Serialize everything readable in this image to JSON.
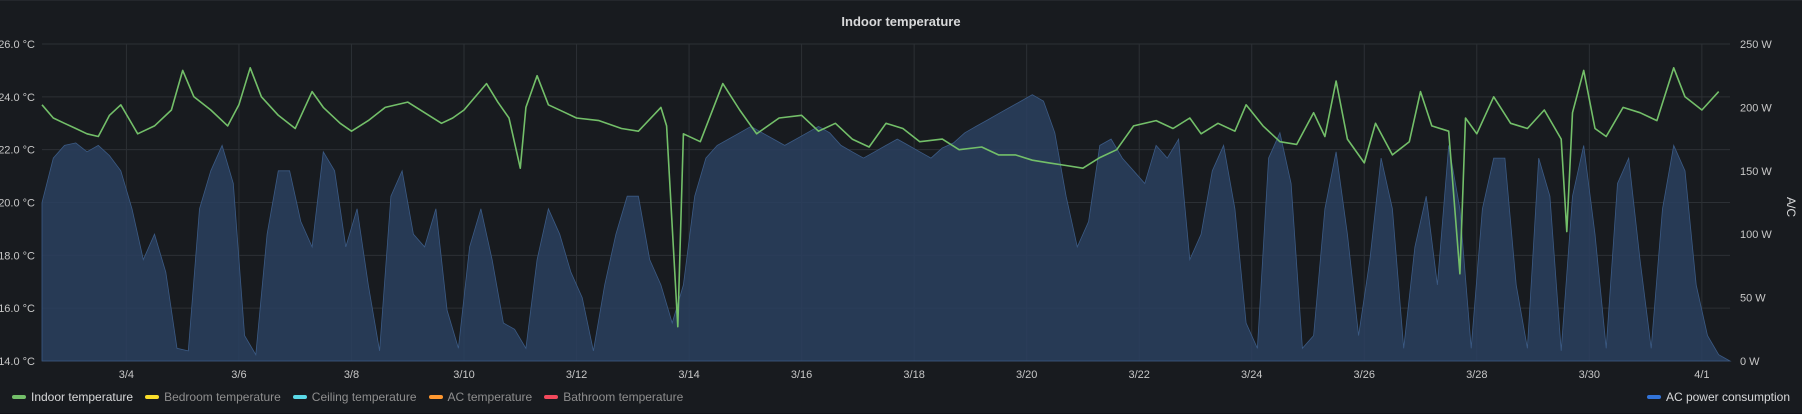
{
  "panel": {
    "title": "Indoor temperature"
  },
  "legend": {
    "items": [
      {
        "label": "Indoor temperature",
        "color": "#73bf69",
        "active": true
      },
      {
        "label": "Bedroom temperature",
        "color": "#fade2a",
        "active": false
      },
      {
        "label": "Ceiling temperature",
        "color": "#5ad8e6",
        "active": false
      },
      {
        "label": "AC temperature",
        "color": "#ff9830",
        "active": false
      },
      {
        "label": "Bathroom temperature",
        "color": "#f2495c",
        "active": false
      }
    ],
    "right": {
      "label": "AC power consumption",
      "color": "#3274d9"
    }
  },
  "chart_data": {
    "type": "line",
    "title": "Indoor temperature",
    "y_left": {
      "ticks": [
        "26.0 °C",
        "24.0 °C",
        "22.0 °C",
        "20.0 °C",
        "18.0 °C",
        "16.0 °C",
        "14.0 °C"
      ],
      "range": [
        14,
        26
      ],
      "unit": "°C"
    },
    "y_right": {
      "ticks": [
        "250 W",
        "200 W",
        "150 W",
        "100 W",
        "50 W",
        "0 W"
      ],
      "range": [
        0,
        250
      ],
      "label": "A/C"
    },
    "x_ticks": [
      "3/4",
      "3/6",
      "3/8",
      "3/10",
      "3/12",
      "3/14",
      "3/16",
      "3/18",
      "3/20",
      "3/22",
      "3/24",
      "3/26",
      "3/28",
      "3/30",
      "4/1"
    ],
    "x_range_days": [
      -1.5,
      28.5
    ],
    "grid": true,
    "series": [
      {
        "name": "Indoor temperature",
        "axis": "left",
        "color": "#73bf69",
        "points": [
          [
            -1.5,
            23.7
          ],
          [
            -1.3,
            23.2
          ],
          [
            -1.1,
            23.0
          ],
          [
            -0.9,
            22.8
          ],
          [
            -0.7,
            22.6
          ],
          [
            -0.5,
            22.5
          ],
          [
            -0.3,
            23.3
          ],
          [
            -0.1,
            23.7
          ],
          [
            0.2,
            22.6
          ],
          [
            0.5,
            22.9
          ],
          [
            0.8,
            23.5
          ],
          [
            1.0,
            25.0
          ],
          [
            1.2,
            24.0
          ],
          [
            1.5,
            23.5
          ],
          [
            1.8,
            22.9
          ],
          [
            2.0,
            23.7
          ],
          [
            2.2,
            25.1
          ],
          [
            2.4,
            24.0
          ],
          [
            2.7,
            23.3
          ],
          [
            3.0,
            22.8
          ],
          [
            3.3,
            24.2
          ],
          [
            3.5,
            23.6
          ],
          [
            3.8,
            23.0
          ],
          [
            4.0,
            22.7
          ],
          [
            4.3,
            23.1
          ],
          [
            4.6,
            23.6
          ],
          [
            5.0,
            23.8
          ],
          [
            5.3,
            23.4
          ],
          [
            5.6,
            23.0
          ],
          [
            5.8,
            23.2
          ],
          [
            6.0,
            23.5
          ],
          [
            6.4,
            24.5
          ],
          [
            6.6,
            23.8
          ],
          [
            6.8,
            23.2
          ],
          [
            7.0,
            21.3
          ],
          [
            7.1,
            23.6
          ],
          [
            7.3,
            24.8
          ],
          [
            7.5,
            23.7
          ],
          [
            7.8,
            23.4
          ],
          [
            8.0,
            23.2
          ],
          [
            8.4,
            23.1
          ],
          [
            8.8,
            22.8
          ],
          [
            9.1,
            22.7
          ],
          [
            9.5,
            23.6
          ],
          [
            9.6,
            22.9
          ],
          [
            9.8,
            15.3
          ],
          [
            9.9,
            22.6
          ],
          [
            10.2,
            22.3
          ],
          [
            10.6,
            24.5
          ],
          [
            10.9,
            23.5
          ],
          [
            11.2,
            22.6
          ],
          [
            11.6,
            23.2
          ],
          [
            12.0,
            23.3
          ],
          [
            12.3,
            22.7
          ],
          [
            12.6,
            23.0
          ],
          [
            12.9,
            22.4
          ],
          [
            13.2,
            22.1
          ],
          [
            13.5,
            23.0
          ],
          [
            13.8,
            22.8
          ],
          [
            14.1,
            22.3
          ],
          [
            14.5,
            22.4
          ],
          [
            14.8,
            22.0
          ],
          [
            15.2,
            22.1
          ],
          [
            15.5,
            21.8
          ],
          [
            15.8,
            21.8
          ],
          [
            16.1,
            21.6
          ],
          [
            16.4,
            21.5
          ],
          [
            16.7,
            21.4
          ],
          [
            17.0,
            21.3
          ],
          [
            17.3,
            21.7
          ],
          [
            17.6,
            22.0
          ],
          [
            17.9,
            22.9
          ],
          [
            18.3,
            23.1
          ],
          [
            18.6,
            22.8
          ],
          [
            18.9,
            23.2
          ],
          [
            19.1,
            22.6
          ],
          [
            19.4,
            23.0
          ],
          [
            19.7,
            22.7
          ],
          [
            19.9,
            23.7
          ],
          [
            20.2,
            22.9
          ],
          [
            20.5,
            22.3
          ],
          [
            20.8,
            22.2
          ],
          [
            21.1,
            23.4
          ],
          [
            21.3,
            22.5
          ],
          [
            21.5,
            24.6
          ],
          [
            21.7,
            22.4
          ],
          [
            22.0,
            21.5
          ],
          [
            22.2,
            23.0
          ],
          [
            22.5,
            21.8
          ],
          [
            22.8,
            22.3
          ],
          [
            23.0,
            24.2
          ],
          [
            23.2,
            22.9
          ],
          [
            23.5,
            22.7
          ],
          [
            23.7,
            17.3
          ],
          [
            23.8,
            23.2
          ],
          [
            24.0,
            22.6
          ],
          [
            24.3,
            24.0
          ],
          [
            24.6,
            23.0
          ],
          [
            24.9,
            22.8
          ],
          [
            25.2,
            23.5
          ],
          [
            25.5,
            22.4
          ],
          [
            25.6,
            18.9
          ],
          [
            25.7,
            23.4
          ],
          [
            25.9,
            25.0
          ],
          [
            26.1,
            22.8
          ],
          [
            26.3,
            22.5
          ],
          [
            26.6,
            23.6
          ],
          [
            26.9,
            23.4
          ],
          [
            27.2,
            23.1
          ],
          [
            27.5,
            25.1
          ],
          [
            27.7,
            24.0
          ],
          [
            28.0,
            23.5
          ],
          [
            28.3,
            24.2
          ]
        ]
      }
    ],
    "area_series": {
      "name": "AC power consumption",
      "axis": "right",
      "color": "#3274d9",
      "points": [
        [
          -1.5,
          125
        ],
        [
          -1.3,
          160
        ],
        [
          -1.1,
          170
        ],
        [
          -0.9,
          172
        ],
        [
          -0.7,
          165
        ],
        [
          -0.5,
          170
        ],
        [
          -0.3,
          162
        ],
        [
          -0.1,
          150
        ],
        [
          0.1,
          120
        ],
        [
          0.3,
          80
        ],
        [
          0.5,
          100
        ],
        [
          0.7,
          70
        ],
        [
          0.9,
          10
        ],
        [
          1.1,
          8
        ],
        [
          1.3,
          120
        ],
        [
          1.5,
          150
        ],
        [
          1.7,
          170
        ],
        [
          1.9,
          140
        ],
        [
          2.1,
          20
        ],
        [
          2.3,
          5
        ],
        [
          2.5,
          100
        ],
        [
          2.7,
          150
        ],
        [
          2.9,
          150
        ],
        [
          3.1,
          110
        ],
        [
          3.3,
          90
        ],
        [
          3.5,
          165
        ],
        [
          3.7,
          150
        ],
        [
          3.9,
          90
        ],
        [
          4.1,
          120
        ],
        [
          4.3,
          60
        ],
        [
          4.5,
          8
        ],
        [
          4.7,
          130
        ],
        [
          4.9,
          150
        ],
        [
          5.1,
          100
        ],
        [
          5.3,
          90
        ],
        [
          5.5,
          120
        ],
        [
          5.7,
          40
        ],
        [
          5.9,
          10
        ],
        [
          6.1,
          90
        ],
        [
          6.3,
          120
        ],
        [
          6.5,
          80
        ],
        [
          6.7,
          30
        ],
        [
          6.9,
          25
        ],
        [
          7.1,
          10
        ],
        [
          7.3,
          80
        ],
        [
          7.5,
          120
        ],
        [
          7.7,
          100
        ],
        [
          7.9,
          70
        ],
        [
          8.1,
          50
        ],
        [
          8.3,
          8
        ],
        [
          8.5,
          60
        ],
        [
          8.7,
          100
        ],
        [
          8.9,
          130
        ],
        [
          9.1,
          130
        ],
        [
          9.3,
          80
        ],
        [
          9.5,
          60
        ],
        [
          9.7,
          30
        ],
        [
          9.9,
          60
        ],
        [
          10.1,
          130
        ],
        [
          10.3,
          160
        ],
        [
          10.5,
          170
        ],
        [
          10.7,
          175
        ],
        [
          10.9,
          180
        ],
        [
          11.1,
          185
        ],
        [
          11.3,
          180
        ],
        [
          11.5,
          175
        ],
        [
          11.7,
          170
        ],
        [
          11.9,
          175
        ],
        [
          12.1,
          180
        ],
        [
          12.3,
          185
        ],
        [
          12.5,
          180
        ],
        [
          12.7,
          170
        ],
        [
          12.9,
          165
        ],
        [
          13.1,
          160
        ],
        [
          13.3,
          165
        ],
        [
          13.5,
          170
        ],
        [
          13.7,
          175
        ],
        [
          13.9,
          170
        ],
        [
          14.1,
          165
        ],
        [
          14.3,
          160
        ],
        [
          14.5,
          168
        ],
        [
          14.7,
          172
        ],
        [
          14.9,
          180
        ],
        [
          15.1,
          185
        ],
        [
          15.3,
          190
        ],
        [
          15.5,
          195
        ],
        [
          15.7,
          200
        ],
        [
          15.9,
          205
        ],
        [
          16.1,
          210
        ],
        [
          16.3,
          205
        ],
        [
          16.5,
          180
        ],
        [
          16.7,
          130
        ],
        [
          16.9,
          90
        ],
        [
          17.1,
          110
        ],
        [
          17.3,
          170
        ],
        [
          17.5,
          175
        ],
        [
          17.7,
          160
        ],
        [
          17.9,
          150
        ],
        [
          18.1,
          140
        ],
        [
          18.3,
          170
        ],
        [
          18.5,
          160
        ],
        [
          18.7,
          175
        ],
        [
          18.9,
          80
        ],
        [
          19.1,
          100
        ],
        [
          19.3,
          150
        ],
        [
          19.5,
          170
        ],
        [
          19.7,
          120
        ],
        [
          19.9,
          30
        ],
        [
          20.1,
          10
        ],
        [
          20.3,
          160
        ],
        [
          20.5,
          180
        ],
        [
          20.7,
          140
        ],
        [
          20.9,
          10
        ],
        [
          21.1,
          20
        ],
        [
          21.3,
          120
        ],
        [
          21.5,
          165
        ],
        [
          21.7,
          100
        ],
        [
          21.9,
          20
        ],
        [
          22.1,
          80
        ],
        [
          22.3,
          160
        ],
        [
          22.5,
          120
        ],
        [
          22.7,
          10
        ],
        [
          22.9,
          90
        ],
        [
          23.1,
          130
        ],
        [
          23.3,
          60
        ],
        [
          23.5,
          170
        ],
        [
          23.7,
          120
        ],
        [
          23.9,
          10
        ],
        [
          24.1,
          120
        ],
        [
          24.3,
          160
        ],
        [
          24.5,
          160
        ],
        [
          24.7,
          60
        ],
        [
          24.9,
          10
        ],
        [
          25.1,
          160
        ],
        [
          25.3,
          130
        ],
        [
          25.5,
          8
        ],
        [
          25.7,
          130
        ],
        [
          25.9,
          170
        ],
        [
          26.1,
          100
        ],
        [
          26.3,
          10
        ],
        [
          26.5,
          140
        ],
        [
          26.7,
          160
        ],
        [
          26.9,
          80
        ],
        [
          27.1,
          10
        ],
        [
          27.3,
          120
        ],
        [
          27.5,
          170
        ],
        [
          27.7,
          150
        ],
        [
          27.9,
          60
        ],
        [
          28.1,
          20
        ],
        [
          28.3,
          5
        ],
        [
          28.5,
          0
        ]
      ]
    }
  }
}
